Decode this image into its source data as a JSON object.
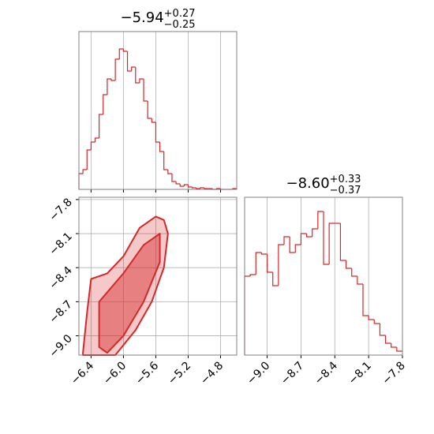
{
  "chart_data": [
    {
      "type": "histogram",
      "title": "−5.94",
      "title_upper": "+0.27",
      "title_lower": "−0.25",
      "bins": [
        -6.55,
        -6.5,
        -6.45,
        -6.4,
        -6.35,
        -6.3,
        -6.25,
        -6.2,
        -6.15,
        -6.1,
        -6.05,
        -6.0,
        -5.95,
        -5.9,
        -5.85,
        -5.8,
        -5.75,
        -5.7,
        -5.65,
        -5.6,
        -5.55,
        -5.5,
        -5.45,
        -5.4,
        -5.35,
        -5.3,
        -5.25,
        -5.2,
        -5.15,
        -5.1,
        -5.05,
        -5.0,
        -4.95,
        -4.9,
        -4.85,
        -4.8,
        -4.75,
        -4.7,
        -4.65,
        -4.6
      ],
      "counts": [
        20,
        25,
        50,
        60,
        65,
        95,
        120,
        140,
        138,
        165,
        178,
        175,
        150,
        155,
        135,
        140,
        112,
        90,
        85,
        60,
        48,
        25,
        20,
        10,
        7,
        4,
        6,
        3,
        2,
        1,
        2,
        1,
        1,
        0,
        1,
        0,
        0,
        0,
        1
      ],
      "xlim": [
        -6.55,
        -4.6
      ],
      "ylim": [
        0,
        200
      ],
      "xticks": [
        -6.4,
        -6.0,
        -5.6,
        -5.2,
        -4.8
      ],
      "grid": true,
      "color": "#d62728"
    },
    {
      "type": "contour",
      "xlim": [
        -6.55,
        -4.6
      ],
      "ylim": [
        -9.17,
        -7.78
      ],
      "xticks": [
        {
          "value": -6.4,
          "label": "−6.4"
        },
        {
          "value": -6.0,
          "label": "−6.0"
        },
        {
          "value": -5.6,
          "label": "−5.6"
        },
        {
          "value": -5.2,
          "label": "−5.2"
        },
        {
          "value": -4.8,
          "label": "−4.8"
        }
      ],
      "yticks": [
        {
          "value": -7.8,
          "label": "−7.8"
        },
        {
          "value": -8.1,
          "label": "−8.1"
        },
        {
          "value": -8.4,
          "label": "−8.4"
        },
        {
          "value": -8.7,
          "label": "−8.7"
        },
        {
          "value": -9.0,
          "label": "−9.0"
        }
      ],
      "grid": true,
      "color": "#d62728",
      "contours": [
        {
          "x": [
            -6.5,
            -6.45,
            -6.4,
            -6.2,
            -6.0,
            -5.8,
            -5.6,
            -5.5,
            -5.45,
            -5.5,
            -5.65,
            -5.85,
            -6.1,
            -6.5
          ],
          "y": [
            -9.15,
            -8.8,
            -8.5,
            -8.45,
            -8.3,
            -8.05,
            -7.95,
            -7.98,
            -8.1,
            -8.4,
            -8.7,
            -8.95,
            -9.17,
            -9.17
          ]
        },
        {
          "x": [
            -6.3,
            -6.3,
            -6.0,
            -5.75,
            -5.55,
            -5.55,
            -5.75,
            -6.0,
            -6.2
          ],
          "y": [
            -9.1,
            -8.7,
            -8.45,
            -8.2,
            -8.1,
            -8.35,
            -8.7,
            -9.0,
            -9.15
          ]
        }
      ]
    },
    {
      "type": "histogram",
      "title": "−8.60",
      "title_upper": "+0.33",
      "title_lower": "−0.37",
      "bins": [
        -9.2,
        -9.15,
        -9.1,
        -9.05,
        -9.0,
        -8.95,
        -8.9,
        -8.85,
        -8.8,
        -8.75,
        -8.7,
        -8.65,
        -8.6,
        -8.55,
        -8.5,
        -8.45,
        -8.4,
        -8.35,
        -8.3,
        -8.25,
        -8.2,
        -8.15,
        -8.1,
        -8.05,
        -8.0,
        -7.95,
        -7.9,
        -7.85,
        -7.8
      ],
      "counts": [
        100,
        102,
        130,
        128,
        105,
        88,
        140,
        150,
        130,
        140,
        154,
        150,
        160,
        182,
        115,
        167,
        167,
        120,
        110,
        100,
        90,
        50,
        45,
        40,
        25,
        15,
        10,
        5
      ],
      "xlim": [
        -9.2,
        -7.8
      ],
      "ylim": [
        0,
        200
      ],
      "xticks": [
        {
          "value": -9.0,
          "label": "−9.0"
        },
        {
          "value": -8.7,
          "label": "−8.7"
        },
        {
          "value": -8.4,
          "label": "−8.4"
        },
        {
          "value": -8.1,
          "label": "−8.1"
        },
        {
          "value": -7.8,
          "label": "−7.8"
        }
      ],
      "grid": true,
      "color": "#d62728"
    }
  ]
}
